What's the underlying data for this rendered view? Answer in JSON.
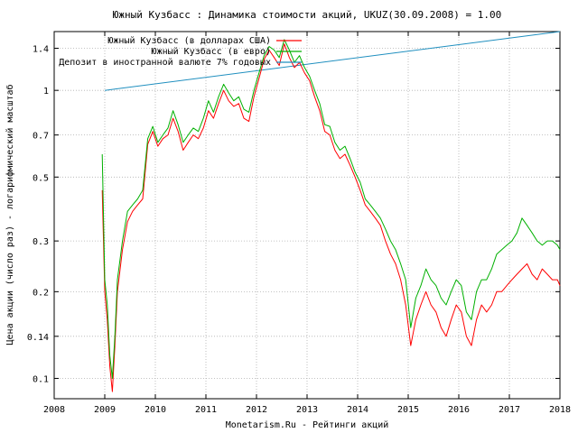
{
  "chart_data": {
    "type": "line",
    "title": "Южный Кузбасс : Динамика стоимости акций, UKUZ(30.09.2008) = 1.00",
    "xlabel": "Monetarism.Ru - Рейтинги акций",
    "ylabel": "Цена акции (число раз) - логарифмический масштаб",
    "x_scale": "linear",
    "y_scale": "log",
    "xlim": [
      2008,
      2018
    ],
    "ylim": [
      0.085,
      1.6
    ],
    "x_ticks": [
      "2008",
      "2009",
      "2010",
      "2011",
      "2012",
      "2013",
      "2014",
      "2015",
      "2016",
      "2017",
      "2018"
    ],
    "y_ticks": [
      "0.1",
      "0.14",
      "0.2",
      "0.3",
      "0.5",
      "0.7",
      "1",
      "1.4"
    ],
    "grid": true,
    "legend_position": "top-left",
    "series": [
      {
        "name": "Южный Кузбасс (в долларах США)",
        "color": "#ff0000",
        "x": [
          2008.95,
          2009.0,
          2009.05,
          2009.1,
          2009.15,
          2009.2,
          2009.25,
          2009.35,
          2009.45,
          2009.55,
          2009.65,
          2009.75,
          2009.85,
          2009.95,
          2010.05,
          2010.15,
          2010.25,
          2010.35,
          2010.45,
          2010.55,
          2010.65,
          2010.75,
          2010.85,
          2010.95,
          2011.05,
          2011.15,
          2011.25,
          2011.35,
          2011.45,
          2011.55,
          2011.65,
          2011.75,
          2011.85,
          2011.95,
          2012.05,
          2012.15,
          2012.25,
          2012.35,
          2012.45,
          2012.55,
          2012.65,
          2012.75,
          2012.85,
          2012.95,
          2013.05,
          2013.15,
          2013.25,
          2013.35,
          2013.45,
          2013.55,
          2013.65,
          2013.75,
          2013.85,
          2013.95,
          2014.05,
          2014.15,
          2014.25,
          2014.35,
          2014.45,
          2014.55,
          2014.65,
          2014.75,
          2014.85,
          2014.95,
          2015.05,
          2015.15,
          2015.25,
          2015.35,
          2015.45,
          2015.55,
          2015.65,
          2015.75,
          2015.85,
          2015.95,
          2016.05,
          2016.15,
          2016.25,
          2016.35,
          2016.45,
          2016.55,
          2016.65,
          2016.75,
          2016.85,
          2016.95,
          2017.05,
          2017.15,
          2017.25,
          2017.35,
          2017.45,
          2017.55,
          2017.65,
          2017.75,
          2017.85,
          2017.95,
          2018.0
        ],
        "values": [
          0.45,
          0.2,
          0.16,
          0.11,
          0.09,
          0.13,
          0.2,
          0.28,
          0.35,
          0.38,
          0.4,
          0.42,
          0.65,
          0.72,
          0.64,
          0.68,
          0.7,
          0.8,
          0.72,
          0.62,
          0.66,
          0.7,
          0.68,
          0.74,
          0.85,
          0.8,
          0.9,
          1.0,
          0.92,
          0.88,
          0.9,
          0.8,
          0.78,
          0.95,
          1.1,
          1.28,
          1.38,
          1.3,
          1.22,
          1.45,
          1.3,
          1.2,
          1.25,
          1.15,
          1.08,
          0.95,
          0.85,
          0.72,
          0.7,
          0.62,
          0.58,
          0.6,
          0.55,
          0.5,
          0.45,
          0.4,
          0.38,
          0.36,
          0.34,
          0.3,
          0.27,
          0.25,
          0.22,
          0.18,
          0.13,
          0.16,
          0.18,
          0.2,
          0.18,
          0.17,
          0.15,
          0.14,
          0.16,
          0.18,
          0.17,
          0.14,
          0.13,
          0.16,
          0.18,
          0.17,
          0.18,
          0.2,
          0.2,
          0.21,
          0.22,
          0.23,
          0.24,
          0.25,
          0.23,
          0.22,
          0.24,
          0.23,
          0.22,
          0.22,
          0.21
        ]
      },
      {
        "name": "Южный Кузбасс (в евро)",
        "color": "#00b000",
        "x": [
          2008.95,
          2009.0,
          2009.05,
          2009.1,
          2009.15,
          2009.2,
          2009.25,
          2009.35,
          2009.45,
          2009.55,
          2009.65,
          2009.75,
          2009.85,
          2009.95,
          2010.05,
          2010.15,
          2010.25,
          2010.35,
          2010.45,
          2010.55,
          2010.65,
          2010.75,
          2010.85,
          2010.95,
          2011.05,
          2011.15,
          2011.25,
          2011.35,
          2011.45,
          2011.55,
          2011.65,
          2011.75,
          2011.85,
          2011.95,
          2012.05,
          2012.15,
          2012.25,
          2012.35,
          2012.45,
          2012.55,
          2012.65,
          2012.75,
          2012.85,
          2012.95,
          2013.05,
          2013.15,
          2013.25,
          2013.35,
          2013.45,
          2013.55,
          2013.65,
          2013.75,
          2013.85,
          2013.95,
          2014.05,
          2014.15,
          2014.25,
          2014.35,
          2014.45,
          2014.55,
          2014.65,
          2014.75,
          2014.85,
          2014.95,
          2015.05,
          2015.15,
          2015.25,
          2015.35,
          2015.45,
          2015.55,
          2015.65,
          2015.75,
          2015.85,
          2015.95,
          2016.05,
          2016.15,
          2016.25,
          2016.35,
          2016.45,
          2016.55,
          2016.65,
          2016.75,
          2016.85,
          2016.95,
          2017.05,
          2017.15,
          2017.25,
          2017.35,
          2017.45,
          2017.55,
          2017.65,
          2017.75,
          2017.85,
          2017.95,
          2018.0
        ],
        "values": [
          0.6,
          0.22,
          0.18,
          0.12,
          0.1,
          0.14,
          0.22,
          0.3,
          0.38,
          0.4,
          0.42,
          0.45,
          0.68,
          0.75,
          0.66,
          0.7,
          0.74,
          0.85,
          0.76,
          0.66,
          0.7,
          0.74,
          0.72,
          0.8,
          0.92,
          0.84,
          0.95,
          1.05,
          0.98,
          0.92,
          0.95,
          0.86,
          0.84,
          1.0,
          1.15,
          1.32,
          1.42,
          1.38,
          1.3,
          1.5,
          1.38,
          1.25,
          1.32,
          1.2,
          1.12,
          1.0,
          0.9,
          0.76,
          0.75,
          0.66,
          0.62,
          0.64,
          0.58,
          0.52,
          0.48,
          0.42,
          0.4,
          0.38,
          0.36,
          0.33,
          0.3,
          0.28,
          0.25,
          0.22,
          0.15,
          0.19,
          0.21,
          0.24,
          0.22,
          0.21,
          0.19,
          0.18,
          0.2,
          0.22,
          0.21,
          0.17,
          0.16,
          0.2,
          0.22,
          0.22,
          0.24,
          0.27,
          0.28,
          0.29,
          0.3,
          0.32,
          0.36,
          0.34,
          0.32,
          0.3,
          0.29,
          0.3,
          0.3,
          0.29,
          0.28
        ]
      },
      {
        "name": "Депозит в иностранной валюте 7% годовых",
        "color": "#1f8fbf",
        "x": [
          2009.0,
          2018.0
        ],
        "values": [
          1.0,
          1.6
        ]
      }
    ]
  }
}
